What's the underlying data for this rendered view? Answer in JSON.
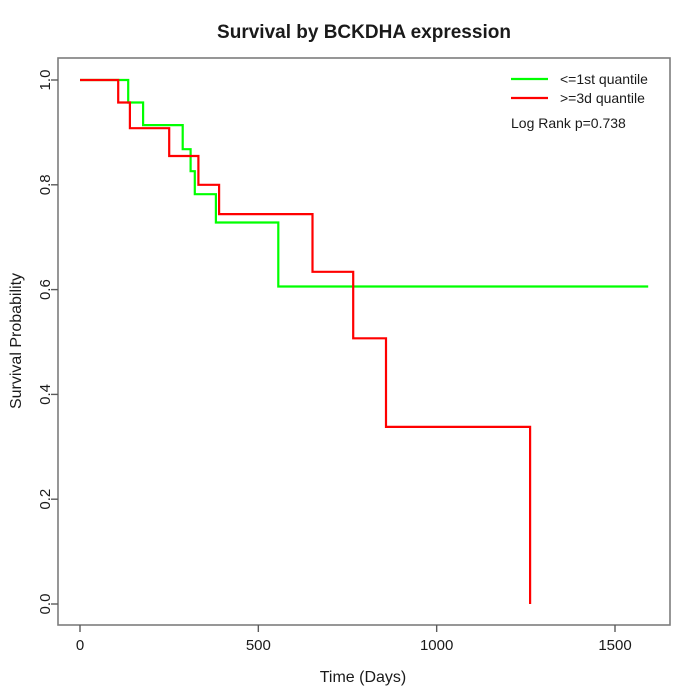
{
  "figure": {
    "background": "#ffffff",
    "box_color": "#7d7d7d",
    "text_color": "#1a1a1a"
  },
  "chart_data": {
    "type": "line",
    "subtype": "kaplan-meier-survival-step",
    "title": "Survival by BCKDHA expression",
    "xlabel": "Time (Days)",
    "ylabel": "Survival Probability",
    "x_ticks": [
      0,
      500,
      1000,
      1500
    ],
    "y_ticks": [
      0.0,
      0.2,
      0.4,
      0.6,
      0.8,
      1.0
    ],
    "xlim": [
      -62,
      1654
    ],
    "ylim": [
      -0.04,
      1.042
    ],
    "grid": false,
    "legend_position": "top-right",
    "annotation": "Log Rank p=0.738",
    "series": [
      {
        "name": "<=1st quantile",
        "color": "#00ff00",
        "points": [
          [
            0,
            1.0
          ],
          [
            135,
            1.0
          ],
          [
            135,
            0.957
          ],
          [
            177,
            0.957
          ],
          [
            177,
            0.914
          ],
          [
            288,
            0.914
          ],
          [
            288,
            0.868
          ],
          [
            310,
            0.868
          ],
          [
            310,
            0.826
          ],
          [
            322,
            0.826
          ],
          [
            322,
            0.782
          ],
          [
            381,
            0.782
          ],
          [
            381,
            0.728
          ],
          [
            556,
            0.728
          ],
          [
            556,
            0.606
          ],
          [
            1593,
            0.606
          ]
        ]
      },
      {
        "name": ">=3d quantile",
        "color": "#ff0000",
        "points": [
          [
            0,
            1.0
          ],
          [
            107,
            1.0
          ],
          [
            107,
            0.957
          ],
          [
            140,
            0.957
          ],
          [
            140,
            0.908
          ],
          [
            250,
            0.908
          ],
          [
            250,
            0.855
          ],
          [
            332,
            0.855
          ],
          [
            332,
            0.8
          ],
          [
            390,
            0.8
          ],
          [
            390,
            0.744
          ],
          [
            652,
            0.744
          ],
          [
            652,
            0.634
          ],
          [
            766,
            0.634
          ],
          [
            766,
            0.507
          ],
          [
            858,
            0.507
          ],
          [
            858,
            0.338
          ],
          [
            1262,
            0.338
          ],
          [
            1262,
            0.0
          ]
        ]
      }
    ]
  }
}
